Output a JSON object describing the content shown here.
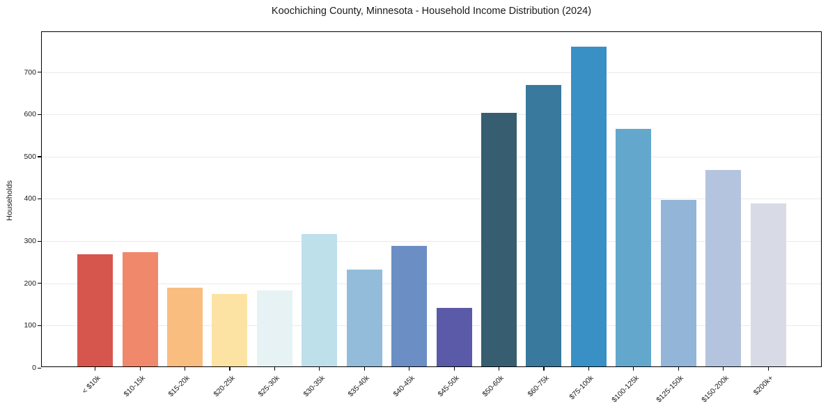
{
  "figure": {
    "background_color": "#ffffff",
    "spine_color": "#000000",
    "gridline_color": "#e9e9ec",
    "text_color": "#1a1a1a"
  },
  "chart_data": {
    "type": "bar",
    "title": "Koochiching County, Minnesota - Household Income Distribution (2024)",
    "xlabel": "",
    "ylabel": "Households",
    "ylim": [
      0,
      795
    ],
    "yticks": [
      0,
      100,
      200,
      300,
      400,
      500,
      600,
      700
    ],
    "grid": "horizontal-only",
    "legend_position": "none",
    "categories": [
      "< $10k",
      "$10-15k",
      "$15-20k",
      "$20-25k",
      "$25-30k",
      "$30-35k",
      "$35-40k",
      "$40-45k",
      "$45-50k",
      "$50-60k",
      "$60-75k",
      "$75-100k",
      "$100-125k",
      "$125-150k",
      "$150-200k",
      "$200k+"
    ],
    "values": [
      265,
      271,
      187,
      171,
      180,
      314,
      230,
      286,
      139,
      600,
      666,
      757,
      563,
      395,
      465,
      386
    ],
    "bar_colors": [
      "#d6564e",
      "#f0886b",
      "#fabd80",
      "#fde3a3",
      "#e6f2f4",
      "#bde0eb",
      "#92bcd9",
      "#6b8ec4",
      "#5a5aa9",
      "#375e70",
      "#38799d",
      "#3990c4",
      "#63a8cc",
      "#92b5d8",
      "#b5c4de",
      "#d8dae6"
    ],
    "tick_label_rotation_deg": 45
  }
}
